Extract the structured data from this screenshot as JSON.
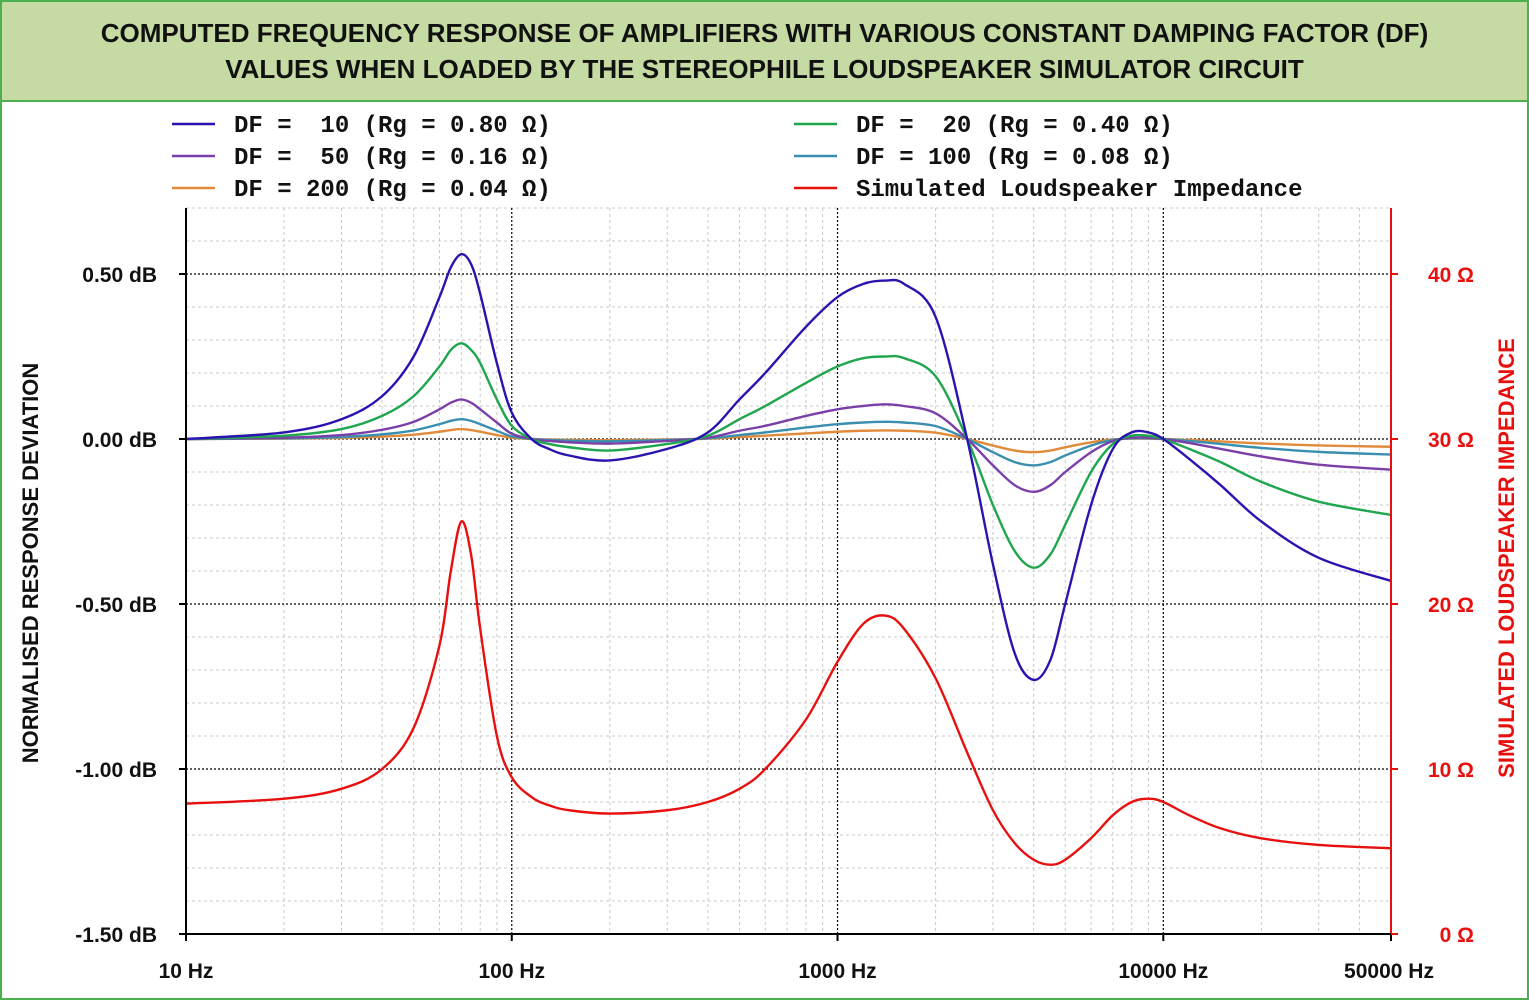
{
  "header": {
    "title_line1": "COMPUTED FREQUENCY RESPONSE OF AMPLIFIERS WITH VARIOUS CONSTANT DAMPING FACTOR (DF)",
    "title_line2": "VALUES WHEN LOADED BY THE STEREOPHILE LOUDSPEAKER SIMULATOR CIRCUIT"
  },
  "chart_data": {
    "type": "line",
    "x_scale": "log",
    "xlim": [
      10,
      50000
    ],
    "ylim": [
      -1.5,
      0.7
    ],
    "y2lim": [
      0,
      44
    ],
    "grid": true,
    "legend_position": "top",
    "ylabel": "NORMALISED RESPONSE DEVIATION",
    "y2label": "SIMULATED LOUDSPEAKER IMPEDANCE",
    "x_ticks": [
      {
        "value": 10,
        "label": "10 Hz"
      },
      {
        "value": 100,
        "label": "100 Hz"
      },
      {
        "value": 1000,
        "label": "1000 Hz"
      },
      {
        "value": 10000,
        "label": "10000 Hz"
      },
      {
        "value": 50000,
        "label": "50000 Hz"
      }
    ],
    "y_ticks": [
      {
        "value": 0.5,
        "label": "0.50 dB"
      },
      {
        "value": 0.0,
        "label": "0.00 dB"
      },
      {
        "value": -0.5,
        "label": "-0.50 dB"
      },
      {
        "value": -1.0,
        "label": "-1.00 dB"
      },
      {
        "value": -1.5,
        "label": "-1.50 dB"
      }
    ],
    "y2_ticks": [
      {
        "value": 40,
        "label": "40 Ω"
      },
      {
        "value": 30,
        "label": "30 Ω"
      },
      {
        "value": 20,
        "label": "20 Ω"
      },
      {
        "value": 10,
        "label": "10 Ω"
      },
      {
        "value": 0,
        "label": "0 Ω"
      }
    ],
    "x": [
      10,
      20,
      30,
      40,
      50,
      60,
      65,
      70,
      75,
      80,
      90,
      100,
      115,
      130,
      150,
      200,
      300,
      400,
      500,
      600,
      800,
      1000,
      1200,
      1400,
      1600,
      2000,
      2500,
      3000,
      3500,
      4000,
      4500,
      5000,
      6000,
      7000,
      8000,
      9000,
      10000,
      12000,
      15000,
      20000,
      30000,
      50000
    ],
    "series": [
      {
        "name": "DF =  10 (Rg = 0.80 Ω)",
        "color": "#2a14b0",
        "axis": "left",
        "values": [
          0.0,
          0.02,
          0.06,
          0.13,
          0.25,
          0.43,
          0.52,
          0.56,
          0.53,
          0.44,
          0.23,
          0.08,
          0.0,
          -0.03,
          -0.05,
          -0.065,
          -0.03,
          0.02,
          0.12,
          0.2,
          0.34,
          0.43,
          0.47,
          0.48,
          0.47,
          0.37,
          0.0,
          -0.38,
          -0.65,
          -0.73,
          -0.67,
          -0.5,
          -0.2,
          -0.03,
          0.02,
          0.02,
          0.0,
          -0.06,
          -0.14,
          -0.25,
          -0.36,
          -0.43
        ]
      },
      {
        "name": "DF =  20 (Rg = 0.40 Ω)",
        "color": "#1fa64e",
        "axis": "left",
        "values": [
          0.0,
          0.01,
          0.03,
          0.07,
          0.13,
          0.22,
          0.27,
          0.29,
          0.27,
          0.23,
          0.12,
          0.04,
          0.0,
          -0.015,
          -0.025,
          -0.035,
          -0.015,
          0.01,
          0.06,
          0.1,
          0.17,
          0.22,
          0.245,
          0.25,
          0.245,
          0.19,
          0.0,
          -0.2,
          -0.34,
          -0.39,
          -0.35,
          -0.26,
          -0.1,
          -0.015,
          0.01,
          0.01,
          0.0,
          -0.03,
          -0.07,
          -0.13,
          -0.19,
          -0.23
        ]
      },
      {
        "name": "DF =  50 (Rg = 0.16 Ω)",
        "color": "#7b3fa8",
        "axis": "left",
        "values": [
          0.0,
          0.004,
          0.012,
          0.028,
          0.052,
          0.09,
          0.11,
          0.12,
          0.11,
          0.09,
          0.05,
          0.016,
          0.0,
          -0.006,
          -0.01,
          -0.014,
          -0.006,
          0.004,
          0.025,
          0.04,
          0.07,
          0.09,
          0.1,
          0.105,
          0.1,
          0.078,
          0.0,
          -0.08,
          -0.14,
          -0.16,
          -0.14,
          -0.1,
          -0.04,
          -0.006,
          0.004,
          0.004,
          0.0,
          -0.012,
          -0.03,
          -0.053,
          -0.078,
          -0.093
        ]
      },
      {
        "name": "DF = 100 (Rg = 0.08 Ω)",
        "color": "#3a8fb0",
        "axis": "left",
        "values": [
          0.0,
          0.002,
          0.006,
          0.014,
          0.026,
          0.045,
          0.055,
          0.06,
          0.055,
          0.045,
          0.025,
          0.008,
          0.0,
          -0.003,
          -0.005,
          -0.007,
          -0.003,
          0.002,
          0.012,
          0.02,
          0.035,
          0.045,
          0.05,
          0.052,
          0.05,
          0.039,
          0.0,
          -0.04,
          -0.07,
          -0.08,
          -0.07,
          -0.05,
          -0.02,
          -0.003,
          0.002,
          0.002,
          0.0,
          -0.006,
          -0.015,
          -0.027,
          -0.039,
          -0.047
        ]
      },
      {
        "name": "DF = 200 (Rg = 0.04 Ω)",
        "color": "#e08a3a",
        "axis": "left",
        "values": [
          0.0,
          0.001,
          0.003,
          0.007,
          0.013,
          0.022,
          0.027,
          0.03,
          0.027,
          0.022,
          0.012,
          0.004,
          0.0,
          -0.0015,
          -0.0025,
          -0.0035,
          -0.0015,
          0.001,
          0.006,
          0.01,
          0.017,
          0.022,
          0.025,
          0.026,
          0.025,
          0.019,
          0.0,
          -0.02,
          -0.035,
          -0.04,
          -0.035,
          -0.025,
          -0.01,
          -0.0015,
          0.001,
          0.001,
          0.0,
          -0.003,
          -0.0075,
          -0.0135,
          -0.0195,
          -0.0235
        ]
      },
      {
        "name": "Simulated Loudspeaker Impedance",
        "color": "#e8100f",
        "axis": "right",
        "values": [
          7.9,
          8.2,
          8.8,
          10.0,
          12.5,
          17.5,
          22.0,
          25.0,
          23.0,
          18.5,
          12.0,
          9.5,
          8.3,
          7.8,
          7.5,
          7.3,
          7.5,
          8.0,
          8.8,
          10.0,
          13.0,
          16.5,
          18.8,
          19.3,
          18.5,
          15.5,
          11.0,
          7.5,
          5.5,
          4.5,
          4.2,
          4.5,
          5.8,
          7.2,
          8.0,
          8.2,
          8.0,
          7.2,
          6.4,
          5.8,
          5.4,
          5.2
        ]
      }
    ]
  }
}
